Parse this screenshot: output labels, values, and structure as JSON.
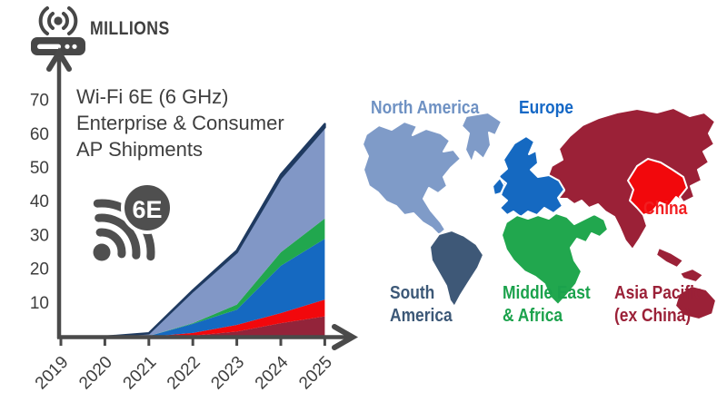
{
  "header": {
    "units_label": "MILLIONS"
  },
  "chart": {
    "title": "Wi-Fi 6E (6 GHz)\nEnterprise & Consumer\nAP Shipments",
    "badge": "6E"
  },
  "chart_data": {
    "type": "area",
    "stacked": true,
    "title": "Wi-Fi 6E (6 GHz) Enterprise & Consumer AP Shipments",
    "ylabel": "MILLIONS",
    "ylim": [
      0,
      70
    ],
    "yticks": [
      10,
      20,
      30,
      40,
      50,
      60,
      70
    ],
    "grid": false,
    "legend_position": "map-right",
    "x": [
      "2019",
      "2020",
      "2021",
      "2022",
      "2023",
      "2024",
      "2025"
    ],
    "series": [
      {
        "name": "Asia Pacific (ex China)",
        "color": "#93243a",
        "values": [
          0,
          0,
          0,
          0.3,
          1.5,
          4,
          6
        ]
      },
      {
        "name": "China",
        "color": "#f2080c",
        "values": [
          0,
          0,
          0,
          0.8,
          2,
          3,
          5
        ]
      },
      {
        "name": "Europe",
        "color": "#1569c1",
        "values": [
          0,
          0,
          0.2,
          2.7,
          4.5,
          14,
          18
        ]
      },
      {
        "name": "Middle East & Africa",
        "color": "#21a74e",
        "values": [
          0,
          0,
          0,
          0.2,
          1.5,
          4,
          6
        ]
      },
      {
        "name": "North America",
        "color": "#8197c6",
        "values": [
          0,
          0,
          0.8,
          9.5,
          15.5,
          22,
          27
        ]
      },
      {
        "name": "South America",
        "color": "#1f3a60",
        "values": [
          0,
          0,
          0,
          0.2,
          0.5,
          1,
          1
        ]
      }
    ],
    "totals_by_year": [
      0,
      0,
      1,
      13.7,
      25.5,
      48,
      63
    ]
  },
  "axis": {
    "line_color": "#4a4a4a",
    "text_color": "#3e3e3e"
  },
  "map": {
    "regions": [
      {
        "id": "north_america",
        "label": "North America",
        "color": "#7f9bc8",
        "label_color": "#6e91c3"
      },
      {
        "id": "europe",
        "label": "Europe",
        "color": "#1569c1",
        "label_color": "#1568c6"
      },
      {
        "id": "china",
        "label": "China",
        "color": "#f2080c",
        "label_color": "#f21d20"
      },
      {
        "id": "south_america",
        "label": "South\nAmerica",
        "color": "#3e5877",
        "label_color": "#3c5877"
      },
      {
        "id": "middle_east_africa",
        "label": "Middle East\n& Africa",
        "color": "#21a74e",
        "label_color": "#1ba24c"
      },
      {
        "id": "asia_pacific",
        "label": "Asia Pacific\n(ex China)",
        "color": "#9b2137",
        "label_color": "#9b2138"
      }
    ]
  }
}
